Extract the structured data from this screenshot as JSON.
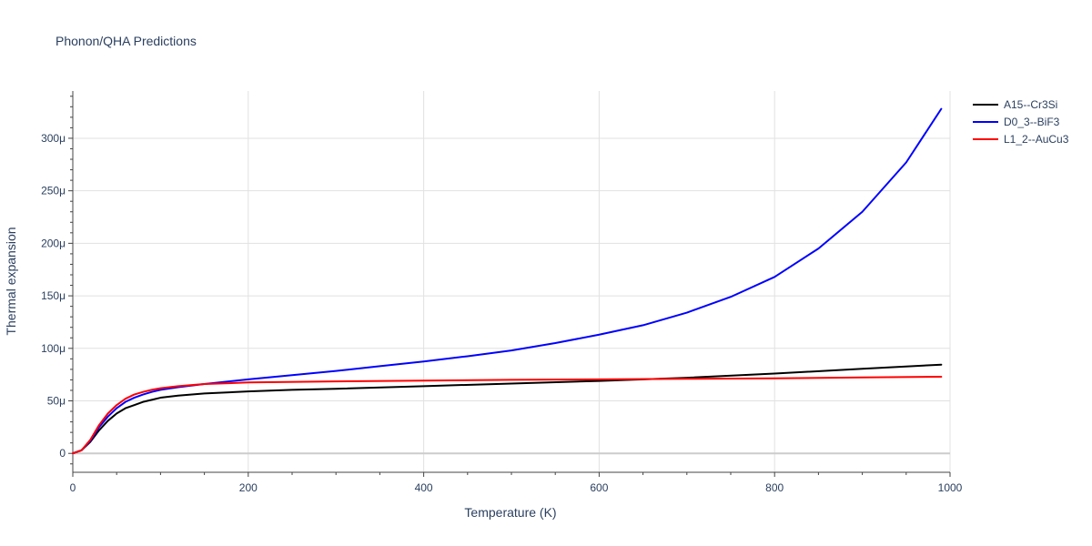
{
  "chart_data": {
    "type": "line",
    "title": "Phonon/QHA Predictions",
    "xlabel": "Temperature (K)",
    "ylabel": "Thermal expansion",
    "xlim": [
      0,
      1000
    ],
    "ylim": [
      -18,
      345
    ],
    "x_ticks": [
      0,
      200,
      400,
      600,
      800,
      1000
    ],
    "x_tick_labels": [
      "0",
      "200",
      "400",
      "600",
      "800",
      "1000"
    ],
    "y_ticks": [
      0,
      50,
      100,
      150,
      200,
      250,
      300
    ],
    "y_tick_labels": [
      "0",
      "50μ",
      "100μ",
      "150μ",
      "200μ",
      "250μ",
      "300μ"
    ],
    "grid": true,
    "legend_position": "top-right",
    "series": [
      {
        "name": "A15--Cr3Si",
        "color": "#000000",
        "x": [
          0,
          10,
          20,
          30,
          40,
          50,
          60,
          70,
          80,
          90,
          100,
          120,
          150,
          200,
          250,
          300,
          400,
          500,
          600,
          700,
          800,
          900,
          990
        ],
        "y": [
          0,
          3,
          11,
          22,
          31,
          38,
          43,
          46,
          49,
          51,
          53,
          55,
          57,
          59,
          60.5,
          61.5,
          64,
          66.5,
          69,
          72,
          76,
          80.5,
          84.5
        ]
      },
      {
        "name": "D0_3--BiF3",
        "color": "#0000ff",
        "x": [
          0,
          10,
          20,
          30,
          40,
          50,
          60,
          70,
          80,
          90,
          100,
          120,
          150,
          200,
          250,
          300,
          350,
          400,
          450,
          500,
          550,
          600,
          650,
          700,
          750,
          800,
          850,
          900,
          950,
          990
        ],
        "y": [
          0,
          3,
          12,
          25,
          35,
          43,
          49,
          53,
          56,
          58.5,
          60.5,
          63,
          66,
          70.5,
          74.5,
          78.5,
          83,
          87.5,
          92.5,
          98,
          105,
          113,
          122,
          134,
          149,
          168,
          195,
          230,
          277,
          328
        ]
      },
      {
        "name": "L1_2--AuCu3",
        "color": "#ff0000",
        "x": [
          0,
          10,
          20,
          30,
          40,
          50,
          60,
          70,
          80,
          90,
          100,
          120,
          150,
          200,
          300,
          400,
          500,
          600,
          700,
          800,
          900,
          990
        ],
        "y": [
          0,
          3,
          13,
          27,
          38,
          46,
          52,
          56,
          58.5,
          60.5,
          62,
          64,
          66,
          67.5,
          68.5,
          69.3,
          70,
          70.5,
          71,
          71.5,
          72.3,
          73
        ]
      }
    ]
  }
}
